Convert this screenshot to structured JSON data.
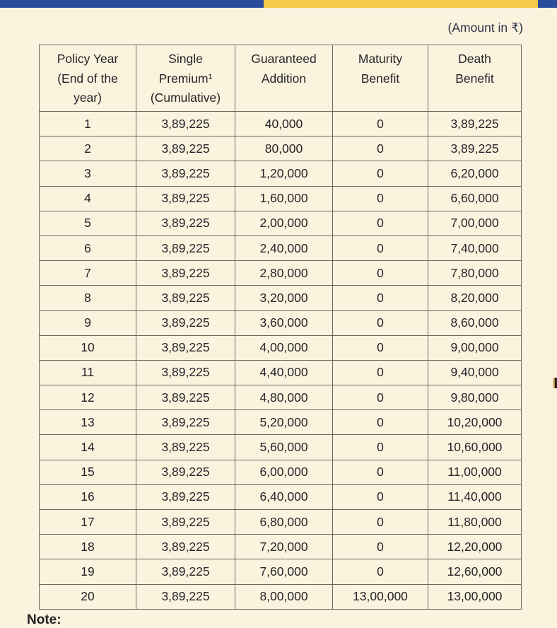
{
  "page": {
    "amount_note": "(Amount in ₹)",
    "note_label": "Note:"
  },
  "table": {
    "columns": [
      "Policy Year\n(End of the\nyear)",
      "Single\nPremium¹\n(Cumulative)",
      "Guaranteed\nAddition",
      "Maturity\nBenefit",
      "Death\nBenefit"
    ],
    "rows": [
      [
        "1",
        "3,89,225",
        "40,000",
        "0",
        "3,89,225"
      ],
      [
        "2",
        "3,89,225",
        "80,000",
        "0",
        "3,89,225"
      ],
      [
        "3",
        "3,89,225",
        "1,20,000",
        "0",
        "6,20,000"
      ],
      [
        "4",
        "3,89,225",
        "1,60,000",
        "0",
        "6,60,000"
      ],
      [
        "5",
        "3,89,225",
        "2,00,000",
        "0",
        "7,00,000"
      ],
      [
        "6",
        "3,89,225",
        "2,40,000",
        "0",
        "7,40,000"
      ],
      [
        "7",
        "3,89,225",
        "2,80,000",
        "0",
        "7,80,000"
      ],
      [
        "8",
        "3,89,225",
        "3,20,000",
        "0",
        "8,20,000"
      ],
      [
        "9",
        "3,89,225",
        "3,60,000",
        "0",
        "8,60,000"
      ],
      [
        "10",
        "3,89,225",
        "4,00,000",
        "0",
        "9,00,000"
      ],
      [
        "11",
        "3,89,225",
        "4,40,000",
        "0",
        "9,40,000"
      ],
      [
        "12",
        "3,89,225",
        "4,80,000",
        "0",
        "9,80,000"
      ],
      [
        "13",
        "3,89,225",
        "5,20,000",
        "0",
        "10,20,000"
      ],
      [
        "14",
        "3,89,225",
        "5,60,000",
        "0",
        "10,60,000"
      ],
      [
        "15",
        "3,89,225",
        "6,00,000",
        "0",
        "11,00,000"
      ],
      [
        "16",
        "3,89,225",
        "6,40,000",
        "0",
        "11,40,000"
      ],
      [
        "17",
        "3,89,225",
        "6,80,000",
        "0",
        "11,80,000"
      ],
      [
        "18",
        "3,89,225",
        "7,20,000",
        "0",
        "12,20,000"
      ],
      [
        "19",
        "3,89,225",
        "7,60,000",
        "0",
        "12,60,000"
      ],
      [
        "20",
        "3,89,225",
        "8,00,000",
        "13,00,000",
        "13,00,000"
      ]
    ]
  },
  "colors": {
    "top_bar_blue": "#2A4D9B",
    "top_bar_yellow": "#F3C94A",
    "background": "#FCF3DE",
    "table_border": "#6B675C",
    "text": "#26242B"
  }
}
